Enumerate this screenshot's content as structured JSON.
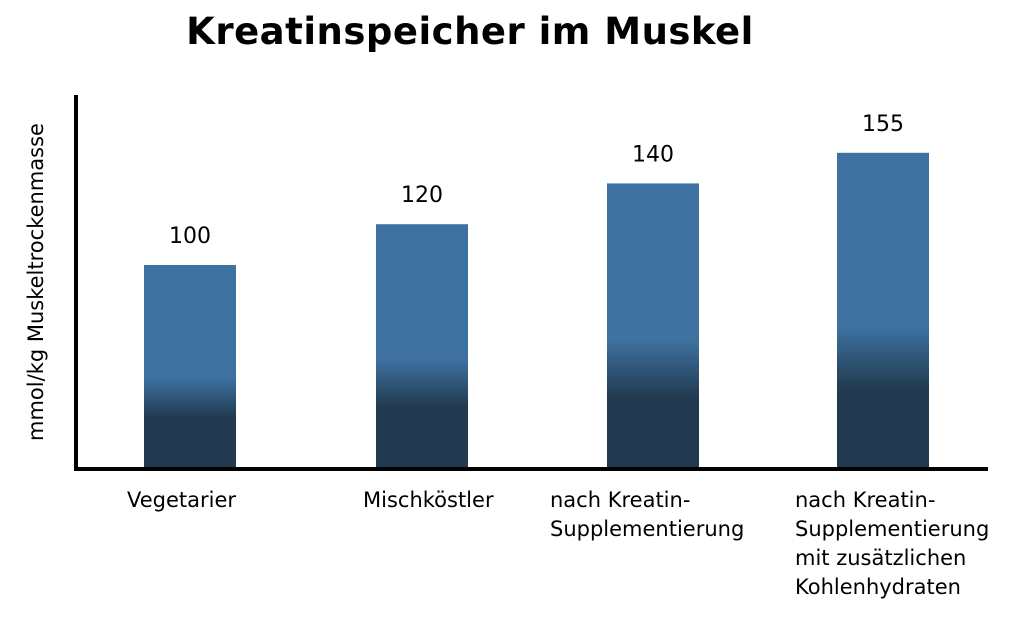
{
  "chart_data": {
    "type": "bar",
    "title": "Kreatinspeicher im Muskel",
    "xlabel": "",
    "ylabel": "mmol/kg Muskeltrockenmasse",
    "categories": [
      "Vegetarier",
      "Mischköstler",
      "nach Kreatin-\nSupplementierung",
      "nach Kreatin-\nSupplementierung\nmit zusätzlichen\nKohlenhydraten"
    ],
    "values": [
      100,
      120,
      140,
      155
    ],
    "ylim": [
      0,
      182
    ],
    "grid": false,
    "colors": {
      "bar_top": "#3e72a0",
      "bar_bottom": "#213a4f",
      "axis": "#000000"
    }
  }
}
